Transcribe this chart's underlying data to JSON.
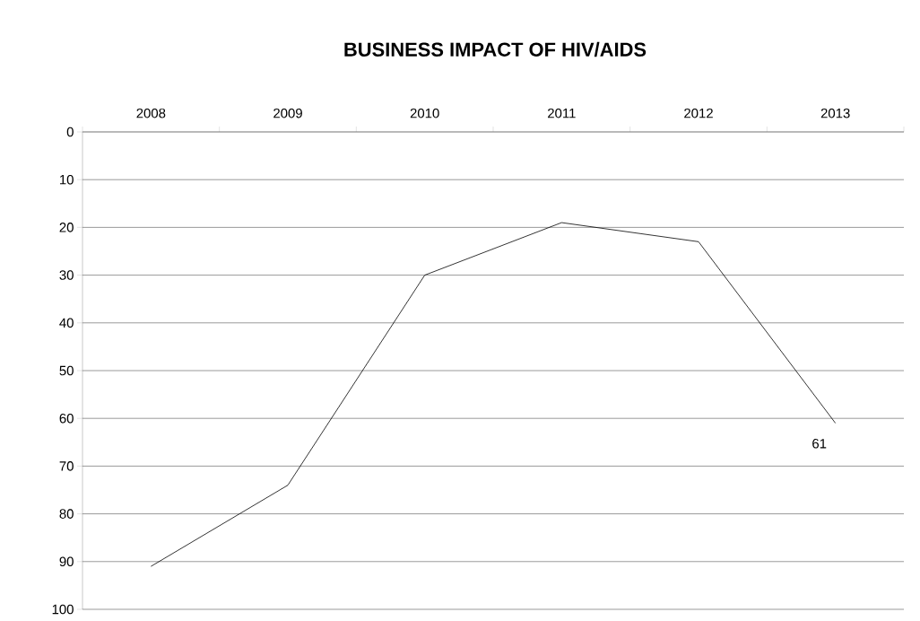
{
  "chart_data": {
    "type": "line",
    "title": "BUSINESS IMPACT OF HIV/AIDS",
    "categories": [
      "2008",
      "2009",
      "2010",
      "2011",
      "2012",
      "2013"
    ],
    "series": [
      {
        "color": "#000000",
        "values": [
          91,
          74,
          30,
          19,
          23,
          61
        ],
        "value_labels": [
          null,
          null,
          null,
          null,
          null,
          "61"
        ]
      }
    ],
    "ylim": [
      100,
      0
    ],
    "yticks": [
      0,
      10,
      20,
      30,
      40,
      50,
      60,
      70,
      80,
      90,
      100
    ],
    "grid": "y",
    "marker": "none",
    "line_style": "solid"
  }
}
